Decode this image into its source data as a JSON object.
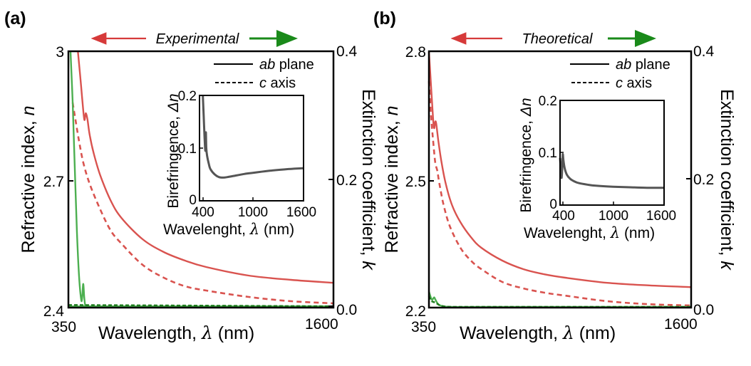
{
  "colors": {
    "n_curve": "#d9534f",
    "k_curve": "#4caf50",
    "k_curve_dashed": "#1e7d1e",
    "arrow_left": "#d63a3a",
    "arrow_right": "#1a8a1a",
    "inset_curve": "#555555",
    "axis": "#000000"
  },
  "chart_data": [
    {
      "panel": "a",
      "panel_label": "(a)",
      "type": "line",
      "header": "Experimental",
      "xlabel": "Wavelength, λ (nm)",
      "ylabel_left": "Refractive index, n",
      "ylabel_right": "Extinction coefficient, k",
      "xlim": [
        350,
        1600
      ],
      "ylim_left": [
        2.4,
        3.0
      ],
      "ylim_right": [
        0.0,
        0.4
      ],
      "xticks": [
        350,
        1600
      ],
      "yticks_left": [
        "2.4",
        "2.7",
        "3"
      ],
      "yticks_right": [
        "0.0",
        "0.2",
        "0.4"
      ],
      "legend": [
        {
          "label_italic": "ab",
          "label": " plane",
          "style": "solid"
        },
        {
          "label_italic": "c",
          "label": " axis",
          "style": "dashed"
        }
      ],
      "legend_position": "top-right",
      "series": [
        {
          "name": "n ab plane",
          "axis": "left",
          "style": "solid",
          "color_key": "n_curve",
          "x": [
            395,
            405,
            415,
            425,
            432,
            440,
            450,
            470,
            500,
            550,
            600,
            700,
            800,
            900,
            1000,
            1200,
            1400,
            1600
          ],
          "y": [
            3.0,
            2.945,
            2.89,
            2.84,
            2.855,
            2.84,
            2.805,
            2.76,
            2.71,
            2.65,
            2.61,
            2.56,
            2.53,
            2.51,
            2.495,
            2.475,
            2.465,
            2.458
          ]
        },
        {
          "name": "n c axis",
          "axis": "left",
          "style": "dashed",
          "color_key": "n_curve",
          "x": [
            370,
            380,
            400,
            420,
            450,
            500,
            550,
            600,
            700,
            800,
            900,
            1000,
            1200,
            1400,
            1600
          ],
          "y": [
            2.88,
            2.85,
            2.79,
            2.74,
            2.69,
            2.63,
            2.58,
            2.55,
            2.5,
            2.47,
            2.45,
            2.44,
            2.425,
            2.415,
            2.41
          ]
        },
        {
          "name": "k ab plane",
          "axis": "right",
          "style": "solid",
          "color_key": "k_curve",
          "x": [
            360,
            370,
            380,
            390,
            400,
            410,
            415,
            420,
            425,
            430,
            440,
            1600
          ],
          "y": [
            0.4,
            0.32,
            0.22,
            0.12,
            0.05,
            0.013,
            0.015,
            0.037,
            0.015,
            0.003,
            0.002,
            0.002
          ]
        },
        {
          "name": "k c axis",
          "axis": "right",
          "style": "dashed",
          "color_key": "k_curve_dashed",
          "x": [
            350,
            1600
          ],
          "y": [
            0.004,
            0.002
          ]
        }
      ],
      "inset": {
        "type": "line",
        "xlabel": "Wavelenght, λ (nm)",
        "ylabel": "Birefringence, Δn",
        "xlim": [
          370,
          1600
        ],
        "ylim": [
          0,
          0.2
        ],
        "xticks": [
          "400",
          "1000",
          "1600"
        ],
        "yticks": [
          "0",
          "0.1",
          "0.2"
        ],
        "series": [
          {
            "name": "Δn",
            "x": [
              410,
              420,
              430,
              440,
              445,
              450,
              460,
              480,
              500,
              550,
              600,
              650,
              700,
              800,
              900,
              1000,
              1200,
              1400,
              1600
            ],
            "y": [
              0.2,
              0.16,
              0.12,
              0.095,
              0.13,
              0.1,
              0.085,
              0.07,
              0.06,
              0.05,
              0.045,
              0.044,
              0.045,
              0.048,
              0.051,
              0.053,
              0.057,
              0.06,
              0.062
            ]
          }
        ]
      }
    },
    {
      "panel": "b",
      "panel_label": "(b)",
      "type": "line",
      "header": "Theoretical",
      "xlabel": "Wavelength, λ (nm)",
      "ylabel_left": "Refractive index, n",
      "ylabel_right": "Extinction coefficient, k",
      "xlim": [
        350,
        1600
      ],
      "ylim_left": [
        2.2,
        2.8
      ],
      "ylim_right": [
        0.0,
        0.4
      ],
      "xticks": [
        350,
        1600
      ],
      "yticks_left": [
        "2.2",
        "2.5",
        "2.8"
      ],
      "yticks_right": [
        "0.0",
        "0.2",
        "0.4"
      ],
      "legend": [
        {
          "label_italic": "ab",
          "label": " plane",
          "style": "solid"
        },
        {
          "label_italic": "c",
          "label": " axis",
          "style": "dashed"
        }
      ],
      "legend_position": "top-right",
      "series": [
        {
          "name": "n ab plane",
          "axis": "left",
          "style": "solid",
          "color_key": "n_curve",
          "x": [
            350,
            360,
            370,
            375,
            380,
            385,
            395,
            410,
            430,
            460,
            500,
            550,
            600,
            700,
            800,
            900,
            1000,
            1200,
            1400,
            1600
          ],
          "y": [
            2.8,
            2.72,
            2.64,
            2.62,
            2.635,
            2.63,
            2.59,
            2.54,
            2.49,
            2.44,
            2.4,
            2.365,
            2.34,
            2.31,
            2.29,
            2.278,
            2.27,
            2.258,
            2.252,
            2.248
          ]
        },
        {
          "name": "n c axis",
          "axis": "left",
          "style": "dashed",
          "color_key": "n_curve",
          "x": [
            350,
            360,
            370,
            380,
            390,
            400,
            420,
            450,
            500,
            550,
            600,
            700,
            800,
            900,
            1000,
            1200,
            1400,
            1600
          ],
          "y": [
            2.73,
            2.65,
            2.59,
            2.54,
            2.52,
            2.49,
            2.44,
            2.39,
            2.34,
            2.31,
            2.29,
            2.26,
            2.245,
            2.235,
            2.228,
            2.215,
            2.208,
            2.205
          ]
        },
        {
          "name": "k ab plane",
          "axis": "right",
          "style": "solid",
          "color_key": "k_curve",
          "x": [
            350,
            360,
            365,
            370,
            375,
            380,
            390,
            400,
            420,
            460,
            600,
            1000,
            1600
          ],
          "y": [
            0.025,
            0.015,
            0.012,
            0.014,
            0.016,
            0.013,
            0.007,
            0.004,
            0.002,
            0.001,
            0.0008,
            0.0005,
            0.0004
          ]
        },
        {
          "name": "k c axis",
          "axis": "right",
          "style": "dashed",
          "color_key": "k_curve_dashed",
          "x": [
            350,
            360,
            370,
            380,
            390,
            400,
            420,
            460,
            600,
            1000,
            1600
          ],
          "y": [
            0.018,
            0.011,
            0.009,
            0.008,
            0.006,
            0.004,
            0.002,
            0.001,
            0.0008,
            0.0004,
            0.0003
          ]
        }
      ],
      "inset": {
        "type": "line",
        "xlabel": "Wavelenght, λ (nm)",
        "ylabel": "Birefringence, Δn",
        "xlim": [
          380,
          1600
        ],
        "ylim": [
          0,
          0.2
        ],
        "xticks": [
          "400",
          "1000",
          "1600"
        ],
        "yticks": [
          "0",
          "0.1",
          "0.2"
        ],
        "series": [
          {
            "name": "Δn",
            "x": [
              380,
              390,
              398,
              405,
              412,
              420,
              435,
              460,
              500,
              550,
              600,
              700,
              800,
              1000,
              1200,
              1400,
              1600
            ],
            "y": [
              0.09,
              0.065,
              0.052,
              0.07,
              0.097,
              0.085,
              0.07,
              0.058,
              0.05,
              0.045,
              0.042,
              0.039,
              0.037,
              0.035,
              0.034,
              0.033,
              0.033
            ]
          }
        ]
      }
    }
  ]
}
